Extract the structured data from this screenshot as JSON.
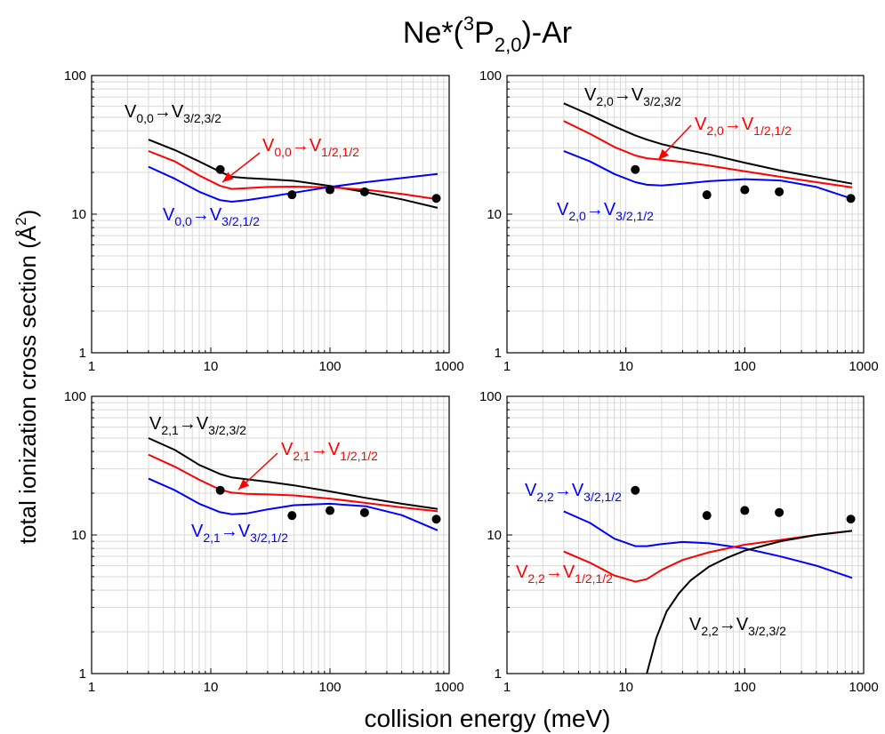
{
  "figure": {
    "title_main": "Ne*(",
    "title_sup": "3",
    "title_P": "P",
    "title_sub": "2,0",
    "title_end": ")-Ar",
    "xlabel": "collision energy (meV)",
    "ylabel_main": "total ionization cross section (Å",
    "ylabel_sup": "2",
    "ylabel_end": ")"
  },
  "colors": {
    "black": "#000000",
    "red": "#ff0000",
    "blue": "#0000ff"
  },
  "chart_data": [
    {
      "type": "line",
      "xscale": "log",
      "yscale": "log",
      "xlim": [
        1,
        1000
      ],
      "ylim": [
        1,
        100
      ],
      "xticks": [
        "1",
        "10",
        "100",
        "1000"
      ],
      "yticks": [
        "1",
        "10",
        "100"
      ],
      "grid": true,
      "series": [
        {
          "color": "black",
          "x": [
            3,
            5,
            8,
            12,
            15,
            20,
            30,
            50,
            100,
            200,
            400,
            800
          ],
          "y": [
            34.5,
            29,
            24,
            20.2,
            18.6,
            18.2,
            17.9,
            17.4,
            16,
            14.4,
            12.8,
            11.1
          ]
        },
        {
          "color": "red",
          "x": [
            3,
            5,
            8,
            12,
            15,
            20,
            30,
            50,
            100,
            200,
            400,
            800
          ],
          "y": [
            28.5,
            24,
            19,
            16,
            15.2,
            15.4,
            15.7,
            15.8,
            15.6,
            15,
            14,
            12.8
          ]
        },
        {
          "color": "blue",
          "x": [
            3,
            5,
            8,
            12,
            15,
            20,
            30,
            50,
            100,
            200,
            400,
            800
          ],
          "y": [
            22,
            18,
            14.5,
            12.6,
            12.3,
            12.6,
            13.3,
            14.3,
            15.7,
            17,
            18.2,
            19.5
          ]
        }
      ],
      "experiment": {
        "x": [
          12,
          48,
          100,
          195,
          780
        ],
        "y": [
          21,
          13.8,
          15,
          14.5,
          13
        ]
      },
      "labels": [
        {
          "color": "black",
          "V": "V",
          "from": "0,0",
          "arrow": "→",
          "to": "3/2,3/2"
        },
        {
          "color": "red",
          "V": "V",
          "from": "0,0",
          "arrow": "→",
          "to": "1/2,1/2"
        },
        {
          "color": "blue",
          "V": "V",
          "from": "0,0",
          "arrow": "→",
          "to": "3/2,1/2"
        }
      ]
    },
    {
      "type": "line",
      "xscale": "log",
      "yscale": "log",
      "xlim": [
        1,
        1000
      ],
      "ylim": [
        1,
        100
      ],
      "xticks": [
        "1",
        "10",
        "100",
        "1000"
      ],
      "yticks": [
        "1",
        "10",
        "100"
      ],
      "grid": true,
      "series": [
        {
          "color": "black",
          "x": [
            3,
            5,
            8,
            12,
            15,
            20,
            30,
            50,
            100,
            200,
            400,
            800
          ],
          "y": [
            63,
            52,
            43,
            37,
            34.5,
            32,
            29.5,
            27,
            23.5,
            20.6,
            18.5,
            16.6
          ]
        },
        {
          "color": "red",
          "x": [
            3,
            5,
            8,
            12,
            15,
            20,
            30,
            50,
            100,
            200,
            400,
            800
          ],
          "y": [
            47,
            38,
            30.5,
            26.5,
            25.3,
            24.7,
            23.8,
            22.4,
            20.4,
            18.6,
            17,
            15.6
          ]
        },
        {
          "color": "blue",
          "x": [
            3,
            5,
            8,
            12,
            15,
            20,
            30,
            50,
            100,
            200,
            400,
            800
          ],
          "y": [
            28.5,
            24,
            19.5,
            17,
            16.3,
            16.1,
            16.6,
            17.3,
            17.9,
            17.5,
            15.7,
            12.9
          ]
        }
      ],
      "experiment": {
        "x": [
          12,
          48,
          100,
          195,
          780
        ],
        "y": [
          21,
          13.8,
          15,
          14.5,
          13
        ]
      },
      "labels": [
        {
          "color": "black",
          "V": "V",
          "from": "2,0",
          "arrow": "→",
          "to": "3/2,3/2"
        },
        {
          "color": "red",
          "V": "V",
          "from": "2,0",
          "arrow": "→",
          "to": "1/2,1/2"
        },
        {
          "color": "blue",
          "V": "V",
          "from": "2,0",
          "arrow": "→",
          "to": "3/2,1/2"
        }
      ]
    },
    {
      "type": "line",
      "xscale": "log",
      "yscale": "log",
      "xlim": [
        1,
        1000
      ],
      "ylim": [
        1,
        100
      ],
      "xticks": [
        "1",
        "10",
        "100",
        "1000"
      ],
      "yticks": [
        "1",
        "10",
        "100"
      ],
      "grid": true,
      "series": [
        {
          "color": "black",
          "x": [
            3,
            5,
            8,
            12,
            15,
            20,
            30,
            50,
            100,
            200,
            400,
            800
          ],
          "y": [
            50,
            41,
            32,
            27.5,
            26,
            25.2,
            24.2,
            22.8,
            20.6,
            18.5,
            16.8,
            15.4
          ]
        },
        {
          "color": "red",
          "x": [
            3,
            5,
            8,
            12,
            15,
            20,
            30,
            50,
            100,
            200,
            400,
            800
          ],
          "y": [
            38,
            31,
            25,
            21.2,
            20.2,
            19.8,
            19.6,
            19.3,
            18.3,
            17,
            15.8,
            14.8
          ]
        },
        {
          "color": "blue",
          "x": [
            3,
            5,
            8,
            12,
            15,
            20,
            30,
            50,
            100,
            200,
            400,
            800
          ],
          "y": [
            25.5,
            21,
            16.8,
            14.6,
            14.1,
            14.3,
            15.3,
            16.4,
            16.8,
            16.1,
            13.9,
            10.8
          ]
        }
      ],
      "experiment": {
        "x": [
          12,
          48,
          100,
          195,
          780
        ],
        "y": [
          21,
          13.8,
          15,
          14.5,
          13
        ]
      },
      "labels": [
        {
          "color": "black",
          "V": "V",
          "from": "2,1",
          "arrow": "→",
          "to": "3/2,3/2"
        },
        {
          "color": "red",
          "V": "V",
          "from": "2,1",
          "arrow": "→",
          "to": "1/2,1/2"
        },
        {
          "color": "blue",
          "V": "V",
          "from": "2,1",
          "arrow": "→",
          "to": "3/2,1/2"
        }
      ]
    },
    {
      "type": "line",
      "xscale": "log",
      "yscale": "log",
      "xlim": [
        1,
        1000
      ],
      "ylim": [
        1,
        100
      ],
      "xticks": [
        "1",
        "10",
        "100",
        "1000"
      ],
      "yticks": [
        "1",
        "10",
        "100"
      ],
      "grid": true,
      "series": [
        {
          "color": "blue",
          "x": [
            3,
            5,
            8,
            12,
            15,
            20,
            30,
            50,
            100,
            200,
            400,
            800
          ],
          "y": [
            14.8,
            12.2,
            9.4,
            8.3,
            8.3,
            8.6,
            8.9,
            8.7,
            8,
            7,
            6,
            4.9
          ]
        },
        {
          "color": "red",
          "x": [
            3,
            5,
            8,
            12,
            15,
            20,
            30,
            50,
            100,
            200,
            400,
            800
          ],
          "y": [
            7.6,
            6.3,
            5.1,
            4.6,
            4.8,
            5.6,
            6.6,
            7.5,
            8.5,
            9.2,
            10,
            10.7
          ]
        },
        {
          "color": "black",
          "x": [
            15,
            18,
            22,
            28,
            35,
            50,
            70,
            100,
            200,
            400,
            800
          ],
          "y": [
            1,
            1.8,
            2.8,
            3.8,
            4.7,
            5.9,
            6.8,
            7.7,
            9,
            10,
            10.7
          ]
        }
      ],
      "experiment": {
        "x": [
          12,
          48,
          100,
          195,
          780
        ],
        "y": [
          21,
          13.8,
          15,
          14.5,
          13
        ]
      },
      "labels": [
        {
          "color": "blue",
          "V": "V",
          "from": "2,2",
          "arrow": "→",
          "to": "3/2,1/2"
        },
        {
          "color": "red",
          "V": "V",
          "from": "2,2",
          "arrow": "→",
          "to": "1/2,1/2"
        },
        {
          "color": "black",
          "V": "V",
          "from": "2,2",
          "arrow": "→",
          "to": "3/2,3/2"
        }
      ]
    }
  ]
}
